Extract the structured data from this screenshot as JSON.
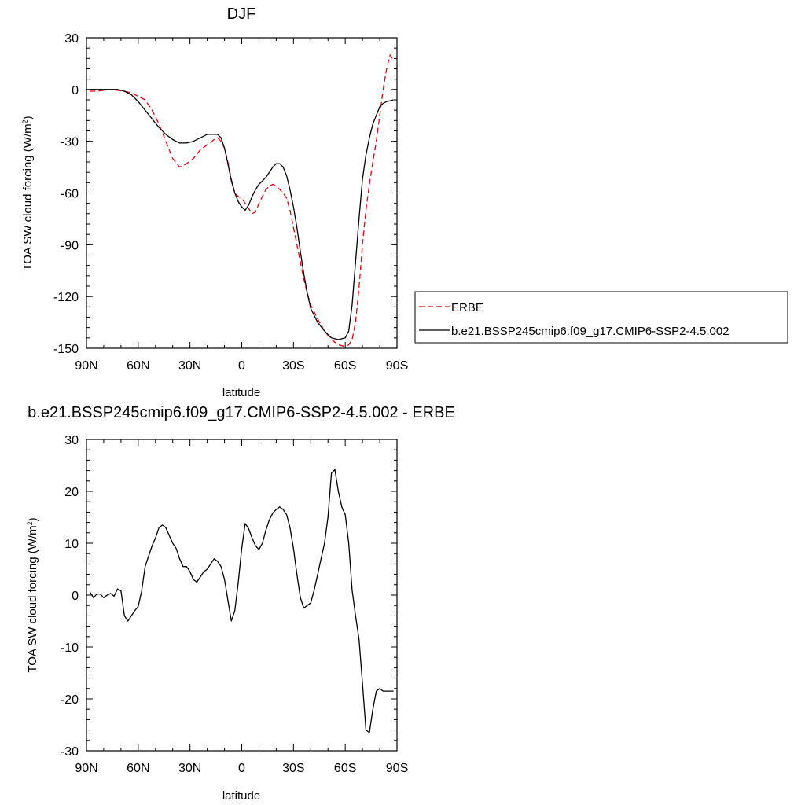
{
  "chart_data": [
    {
      "type": "line",
      "title": "DJF",
      "xlabel": "latitude",
      "ylabel": "TOA SW cloud forcing (W/m",
      "ylabel_sup": "2",
      "ylabel_end": ")",
      "xlim": [
        90,
        -90
      ],
      "ylim": [
        -150,
        30
      ],
      "x_ticks": [
        {
          "value": 90,
          "label": "90N"
        },
        {
          "value": 60,
          "label": "60N"
        },
        {
          "value": 30,
          "label": "30N"
        },
        {
          "value": 0,
          "label": "0"
        },
        {
          "value": -30,
          "label": "30S"
        },
        {
          "value": -60,
          "label": "60S"
        },
        {
          "value": -90,
          "label": "90S"
        }
      ],
      "y_ticks": [
        {
          "value": 30,
          "label": "30"
        },
        {
          "value": 0,
          "label": "0"
        },
        {
          "value": -30,
          "label": "-30"
        },
        {
          "value": -60,
          "label": "-60"
        },
        {
          "value": -90,
          "label": "-90"
        },
        {
          "value": -120,
          "label": "-120"
        },
        {
          "value": -150,
          "label": "-150"
        }
      ],
      "legend_position": "right",
      "series": [
        {
          "name": "ERBE",
          "color": "#e8000b",
          "dash": "dashed",
          "x": [
            88,
            84,
            80,
            76,
            72,
            68,
            64,
            60,
            56,
            52,
            48,
            44,
            40,
            36,
            32,
            28,
            24,
            20,
            16,
            14,
            12,
            10,
            8,
            6,
            4,
            2,
            0,
            -2,
            -4,
            -6,
            -8,
            -10,
            -12,
            -14,
            -16,
            -18,
            -20,
            -22,
            -24,
            -26,
            -28,
            -30,
            -32,
            -34,
            -36,
            -38,
            -40,
            -44,
            -48,
            -52,
            -56,
            -60,
            -62,
            -64,
            -66,
            -68,
            -70,
            -72,
            -74,
            -76,
            -78,
            -80,
            -82,
            -84,
            -86,
            -88
          ],
          "y": [
            -1,
            -1,
            -0.5,
            0,
            -0.5,
            -1,
            -2,
            -4,
            -6,
            -12,
            -20,
            -30,
            -40,
            -45,
            -43,
            -40,
            -35,
            -32,
            -29,
            -28,
            -30,
            -34,
            -42,
            -52,
            -60,
            -62,
            -63,
            -66,
            -69,
            -72,
            -71,
            -66,
            -62,
            -58,
            -56,
            -55,
            -56,
            -58,
            -60,
            -63,
            -70,
            -80,
            -90,
            -100,
            -110,
            -118,
            -125,
            -133,
            -140,
            -145,
            -148,
            -149,
            -148,
            -145,
            -135,
            -115,
            -90,
            -70,
            -55,
            -42,
            -30,
            -15,
            0,
            12,
            20,
            17
          ]
        },
        {
          "name": "b.e21.BSSP245cmip6.f09_g17.CMIP6-SSP2-4.5.002",
          "color": "#000000",
          "dash": "solid",
          "x": [
            88,
            84,
            80,
            76,
            72,
            68,
            64,
            60,
            56,
            52,
            48,
            44,
            40,
            36,
            32,
            28,
            24,
            20,
            16,
            14,
            12,
            10,
            8,
            6,
            4,
            2,
            0,
            -2,
            -4,
            -6,
            -8,
            -10,
            -12,
            -14,
            -16,
            -18,
            -20,
            -22,
            -24,
            -26,
            -28,
            -30,
            -32,
            -34,
            -36,
            -38,
            -40,
            -44,
            -48,
            -52,
            -56,
            -60,
            -62,
            -64,
            -66,
            -68,
            -70,
            -72,
            -74,
            -76,
            -78,
            -80,
            -82,
            -84,
            -86,
            -88
          ],
          "y": [
            0,
            0,
            0,
            0,
            0,
            -1,
            -3,
            -7,
            -12,
            -17,
            -22,
            -26,
            -29,
            -31,
            -31,
            -30,
            -28,
            -26,
            -26,
            -26,
            -28,
            -34,
            -43,
            -53,
            -60,
            -65,
            -68,
            -70,
            -67,
            -62,
            -58,
            -55,
            -53,
            -51,
            -48,
            -45,
            -43,
            -43,
            -45,
            -50,
            -58,
            -68,
            -80,
            -94,
            -107,
            -118,
            -127,
            -135,
            -140,
            -144,
            -145,
            -144,
            -140,
            -125,
            -100,
            -75,
            -52,
            -38,
            -28,
            -20,
            -15,
            -10,
            -8,
            -7,
            -6.5,
            -6
          ]
        }
      ]
    },
    {
      "type": "line",
      "title": "b.e21.BSSP245cmip6.f09_g17.CMIP6-SSP2-4.5.002 - ERBE",
      "xlabel": "latitude",
      "ylabel": "TOA SW cloud forcing (W/m",
      "ylabel_sup": "2",
      "ylabel_end": ")",
      "xlim": [
        90,
        -90
      ],
      "ylim": [
        -30,
        30
      ],
      "x_ticks": [
        {
          "value": 90,
          "label": "90N"
        },
        {
          "value": 60,
          "label": "60N"
        },
        {
          "value": 30,
          "label": "30N"
        },
        {
          "value": 0,
          "label": "0"
        },
        {
          "value": -30,
          "label": "30S"
        },
        {
          "value": -60,
          "label": "60S"
        },
        {
          "value": -90,
          "label": "90S"
        }
      ],
      "y_ticks": [
        {
          "value": 30,
          "label": "30"
        },
        {
          "value": 20,
          "label": "20"
        },
        {
          "value": 10,
          "label": "10"
        },
        {
          "value": 0,
          "label": "0"
        },
        {
          "value": -10,
          "label": "-10"
        },
        {
          "value": -20,
          "label": "-20"
        },
        {
          "value": -30,
          "label": "-30"
        }
      ],
      "series": [
        {
          "color": "#000000",
          "dash": "solid",
          "x": [
            88,
            86,
            84,
            82,
            80,
            78,
            76,
            74,
            72,
            70,
            68,
            66,
            64,
            62,
            60,
            58,
            56,
            54,
            52,
            50,
            48,
            46,
            44,
            42,
            40,
            38,
            36,
            34,
            32,
            30,
            28,
            26,
            24,
            22,
            20,
            18,
            16,
            14,
            12,
            10,
            8,
            6,
            4,
            2,
            0,
            -2,
            -4,
            -6,
            -8,
            -10,
            -12,
            -14,
            -16,
            -18,
            -20,
            -22,
            -24,
            -26,
            -28,
            -30,
            -32,
            -34,
            -36,
            -38,
            -40,
            -42,
            -44,
            -46,
            -48,
            -50,
            -52,
            -54,
            -56,
            -58,
            -60,
            -62,
            -64,
            -66,
            -68,
            -70,
            -72,
            -74,
            -76,
            -78,
            -80,
            -82,
            -84,
            -86,
            -88
          ],
          "y": [
            0.6,
            -0.5,
            0.2,
            0.2,
            -0.5,
            0,
            0.3,
            -0.2,
            1.2,
            0.8,
            -4,
            -5,
            -4,
            -3,
            -2.2,
            0.8,
            5.5,
            7.5,
            9.5,
            11,
            13,
            13.5,
            13,
            11.5,
            10,
            9,
            7,
            5.5,
            5.5,
            4.5,
            3,
            2.5,
            3.5,
            4.5,
            5,
            6,
            7,
            6.5,
            5.5,
            3,
            -1,
            -5,
            -3,
            2.5,
            9,
            13.8,
            12.8,
            11,
            9.5,
            8.8,
            10,
            12.5,
            14.5,
            15.8,
            16.5,
            17,
            16.5,
            15.5,
            13,
            9,
            4,
            -0.5,
            -2.5,
            -2,
            -1.5,
            1,
            4,
            7,
            10,
            15,
            23.5,
            24.2,
            20,
            17,
            15.5,
            10,
            1,
            -4,
            -8.5,
            -17,
            -26,
            -26.5,
            -22,
            -18.5,
            -18,
            -18.5,
            -18.5,
            -18.5,
            -18.5
          ]
        }
      ]
    }
  ]
}
